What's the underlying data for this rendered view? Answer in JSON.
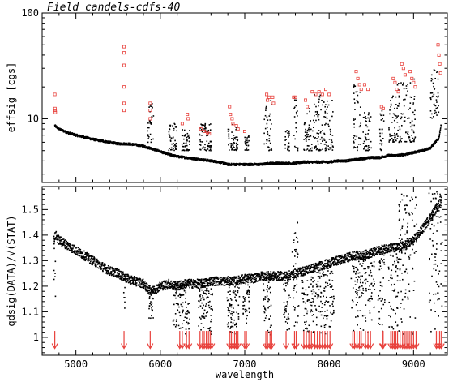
{
  "chart_data": [
    {
      "type": "scatter",
      "title": "Field candels-cdfs-40",
      "xlabel": "",
      "ylabel": "effsig [cgs]",
      "yscale": "log",
      "ylim": [
        2.5,
        100
      ],
      "xlim": [
        4600,
        9400
      ],
      "y_ticks": [
        {
          "value": 10,
          "label": "10"
        },
        {
          "value": 100,
          "label": "100"
        }
      ],
      "series": [
        {
          "color": "#000000",
          "marker": "dot",
          "continuum": [
            [
              4750,
              8.6
            ],
            [
              4800,
              8.0
            ],
            [
              4900,
              7.4
            ],
            [
              5000,
              7.0
            ],
            [
              5100,
              6.7
            ],
            [
              5200,
              6.4
            ],
            [
              5300,
              6.2
            ],
            [
              5400,
              6.0
            ],
            [
              5500,
              5.8
            ],
            [
              5600,
              5.8
            ],
            [
              5700,
              5.7
            ],
            [
              5800,
              5.5
            ],
            [
              5900,
              5.2
            ],
            [
              6000,
              4.9
            ],
            [
              6100,
              4.6
            ],
            [
              6200,
              4.4
            ],
            [
              6300,
              4.3
            ],
            [
              6400,
              4.2
            ],
            [
              6500,
              4.1
            ],
            [
              6600,
              4.0
            ],
            [
              6700,
              3.9
            ],
            [
              6800,
              3.7
            ],
            [
              6900,
              3.7
            ],
            [
              7000,
              3.7
            ],
            [
              7100,
              3.7
            ],
            [
              7200,
              3.7
            ],
            [
              7300,
              3.8
            ],
            [
              7400,
              3.8
            ],
            [
              7500,
              3.8
            ],
            [
              7600,
              3.8
            ],
            [
              7700,
              3.9
            ],
            [
              7800,
              3.9
            ],
            [
              7900,
              3.9
            ],
            [
              8000,
              3.9
            ],
            [
              8100,
              4.0
            ],
            [
              8200,
              4.0
            ],
            [
              8300,
              4.1
            ],
            [
              8400,
              4.2
            ],
            [
              8500,
              4.3
            ],
            [
              8600,
              4.3
            ],
            [
              8700,
              4.5
            ],
            [
              8800,
              4.5
            ],
            [
              8900,
              4.6
            ],
            [
              9000,
              4.8
            ],
            [
              9100,
              5.0
            ],
            [
              9200,
              5.3
            ],
            [
              9300,
              6.5
            ],
            [
              9330,
              9.0
            ]
          ],
          "scatter_bands": [
            [
              5850,
              5920,
              6,
              14
            ],
            [
              6100,
              6200,
              5,
              9
            ],
            [
              6250,
              6350,
              5,
              8
            ],
            [
              6460,
              6600,
              5,
              9
            ],
            [
              6800,
              6920,
              5,
              9
            ],
            [
              7000,
              7050,
              5,
              7
            ],
            [
              7230,
              7320,
              5,
              16
            ],
            [
              7480,
              7530,
              5,
              8
            ],
            [
              7580,
              7630,
              5,
              16
            ],
            [
              7700,
              7800,
              5,
              13
            ],
            [
              7800,
              7950,
              5,
              17
            ],
            [
              7950,
              8050,
              5,
              15
            ],
            [
              8280,
              8380,
              5,
              23
            ],
            [
              8400,
              8500,
              5,
              12
            ],
            [
              8600,
              8650,
              5,
              12
            ],
            [
              8700,
              8800,
              6,
              17
            ],
            [
              8800,
              8900,
              6,
              22
            ],
            [
              8900,
              9020,
              6,
              24
            ],
            [
              9200,
              9300,
              10,
              30
            ]
          ]
        },
        {
          "color": "#e8413c",
          "marker": "open-square",
          "points": [
            [
              4750,
              17
            ],
            [
              4752,
              12.5
            ],
            [
              4754,
              12
            ],
            [
              4756,
              11.5
            ],
            [
              5570,
              48
            ],
            [
              5570,
              42
            ],
            [
              5570,
              32
            ],
            [
              5570,
              20
            ],
            [
              5570,
              14
            ],
            [
              5570,
              12
            ],
            [
              5880,
              14
            ],
            [
              5880,
              12
            ],
            [
              5880,
              10
            ],
            [
              6320,
              11
            ],
            [
              6330,
              10
            ],
            [
              6260,
              9
            ],
            [
              6480,
              8
            ],
            [
              6520,
              7.6
            ],
            [
              6560,
              7.4
            ],
            [
              6580,
              7.2
            ],
            [
              6820,
              13
            ],
            [
              6830,
              11
            ],
            [
              6850,
              10
            ],
            [
              6860,
              9
            ],
            [
              6900,
              8.6
            ],
            [
              6920,
              8
            ],
            [
              7000,
              7.6
            ],
            [
              7260,
              17
            ],
            [
              7270,
              15
            ],
            [
              7290,
              16
            ],
            [
              7330,
              16
            ],
            [
              7340,
              14
            ],
            [
              7580,
              16
            ],
            [
              7600,
              16
            ],
            [
              7720,
              15
            ],
            [
              7740,
              13
            ],
            [
              7800,
              18
            ],
            [
              7840,
              17
            ],
            [
              7880,
              18
            ],
            [
              7920,
              17
            ],
            [
              7960,
              19
            ],
            [
              8000,
              17
            ],
            [
              8320,
              28
            ],
            [
              8340,
              24
            ],
            [
              8360,
              21
            ],
            [
              8380,
              19
            ],
            [
              8420,
              21
            ],
            [
              8460,
              19
            ],
            [
              8620,
              13
            ],
            [
              8640,
              12.5
            ],
            [
              8760,
              24
            ],
            [
              8780,
              22
            ],
            [
              8800,
              19
            ],
            [
              8820,
              18
            ],
            [
              8860,
              33
            ],
            [
              8880,
              30
            ],
            [
              8900,
              26
            ],
            [
              8960,
              28
            ],
            [
              8980,
              24
            ],
            [
              9000,
              22
            ],
            [
              9020,
              20
            ],
            [
              9290,
              50
            ],
            [
              9300,
              40
            ],
            [
              9310,
              33
            ],
            [
              9320,
              27
            ]
          ]
        }
      ]
    },
    {
      "type": "scatter",
      "xlabel": "wavelength",
      "ylabel": "qdsig(DATA)/√(STAT)",
      "xlim": [
        4600,
        9400
      ],
      "ylim": [
        0.93,
        1.59
      ],
      "x_ticks": [
        {
          "value": 5000,
          "label": "5000"
        },
        {
          "value": 6000,
          "label": "6000"
        },
        {
          "value": 7000,
          "label": "7000"
        },
        {
          "value": 8000,
          "label": "8000"
        },
        {
          "value": 9000,
          "label": "9000"
        }
      ],
      "y_ticks": [
        {
          "value": 1.0,
          "label": "1"
        },
        {
          "value": 1.1,
          "label": "1.1"
        },
        {
          "value": 1.2,
          "label": "1.2"
        },
        {
          "value": 1.3,
          "label": "1.3"
        },
        {
          "value": 1.4,
          "label": "1.4"
        },
        {
          "value": 1.5,
          "label": "1.5"
        }
      ],
      "series": [
        {
          "color": "#000000",
          "marker": "dot",
          "continuum": [
            [
              4740,
              1.38
            ],
            [
              4760,
              1.4
            ],
            [
              4800,
              1.38
            ],
            [
              4900,
              1.36
            ],
            [
              5000,
              1.34
            ],
            [
              5100,
              1.32
            ],
            [
              5200,
              1.3
            ],
            [
              5300,
              1.28
            ],
            [
              5400,
              1.26
            ],
            [
              5500,
              1.25
            ],
            [
              5600,
              1.23
            ],
            [
              5700,
              1.22
            ],
            [
              5800,
              1.21
            ],
            [
              5850,
              1.19
            ],
            [
              5900,
              1.18
            ],
            [
              5950,
              1.19
            ],
            [
              6000,
              1.2
            ],
            [
              6100,
              1.21
            ],
            [
              6200,
              1.2
            ],
            [
              6300,
              1.21
            ],
            [
              6400,
              1.21
            ],
            [
              6500,
              1.21
            ],
            [
              6600,
              1.22
            ],
            [
              6700,
              1.22
            ],
            [
              6800,
              1.22
            ],
            [
              6900,
              1.22
            ],
            [
              7000,
              1.23
            ],
            [
              7100,
              1.23
            ],
            [
              7200,
              1.24
            ],
            [
              7300,
              1.24
            ],
            [
              7400,
              1.24
            ],
            [
              7500,
              1.24
            ],
            [
              7600,
              1.25
            ],
            [
              7700,
              1.26
            ],
            [
              7800,
              1.27
            ],
            [
              7900,
              1.28
            ],
            [
              8000,
              1.29
            ],
            [
              8100,
              1.3
            ],
            [
              8200,
              1.31
            ],
            [
              8300,
              1.32
            ],
            [
              8400,
              1.32
            ],
            [
              8500,
              1.33
            ],
            [
              8600,
              1.34
            ],
            [
              8700,
              1.35
            ],
            [
              8800,
              1.35
            ],
            [
              8900,
              1.36
            ],
            [
              9000,
              1.38
            ],
            [
              9100,
              1.42
            ],
            [
              9200,
              1.47
            ],
            [
              9300,
              1.52
            ],
            [
              9330,
              1.55
            ]
          ],
          "scatter_bands": [
            [
              4740,
              4760,
              1.14,
              1.4
            ],
            [
              5560,
              5580,
              1.1,
              1.25
            ],
            [
              5860,
              5920,
              1.07,
              1.2
            ],
            [
              6150,
              6250,
              1.02,
              1.21
            ],
            [
              6250,
              6350,
              1.0,
              1.21
            ],
            [
              6450,
              6620,
              1.0,
              1.21
            ],
            [
              6790,
              6940,
              1.0,
              1.22
            ],
            [
              6980,
              7060,
              1.05,
              1.23
            ],
            [
              7220,
              7320,
              1.0,
              1.24
            ],
            [
              7460,
              7540,
              1.02,
              1.24
            ],
            [
              7560,
              7640,
              1.0,
              1.46
            ],
            [
              7680,
              7820,
              1.0,
              1.26
            ],
            [
              7820,
              8060,
              1.0,
              1.29
            ],
            [
              8260,
              8400,
              1.0,
              1.32
            ],
            [
              8400,
              8540,
              1.0,
              1.33
            ],
            [
              8580,
              8660,
              1.0,
              1.34
            ],
            [
              8700,
              8820,
              1.0,
              1.35
            ],
            [
              8820,
              9040,
              1.0,
              1.56
            ],
            [
              9180,
              9340,
              1.0,
              1.57
            ]
          ]
        }
      ],
      "arrows": {
        "color": "#e8413c",
        "x": [
          4750,
          5570,
          5880,
          6230,
          6260,
          6310,
          6340,
          6470,
          6500,
          6520,
          6545,
          6570,
          6590,
          6610,
          6820,
          6840,
          6860,
          6880,
          6900,
          6920,
          7000,
          7020,
          7250,
          7270,
          7300,
          7320,
          7490,
          7590,
          7610,
          7700,
          7730,
          7760,
          7790,
          7830,
          7860,
          7890,
          7920,
          7950,
          7980,
          8010,
          8280,
          8300,
          8330,
          8360,
          8380,
          8430,
          8460,
          8490,
          8630,
          8640,
          8730,
          8750,
          8770,
          8790,
          8810,
          8840,
          8870,
          8900,
          8920,
          8950,
          8970,
          9000,
          9030,
          9270,
          9290,
          9310,
          9330
        ]
      }
    }
  ]
}
